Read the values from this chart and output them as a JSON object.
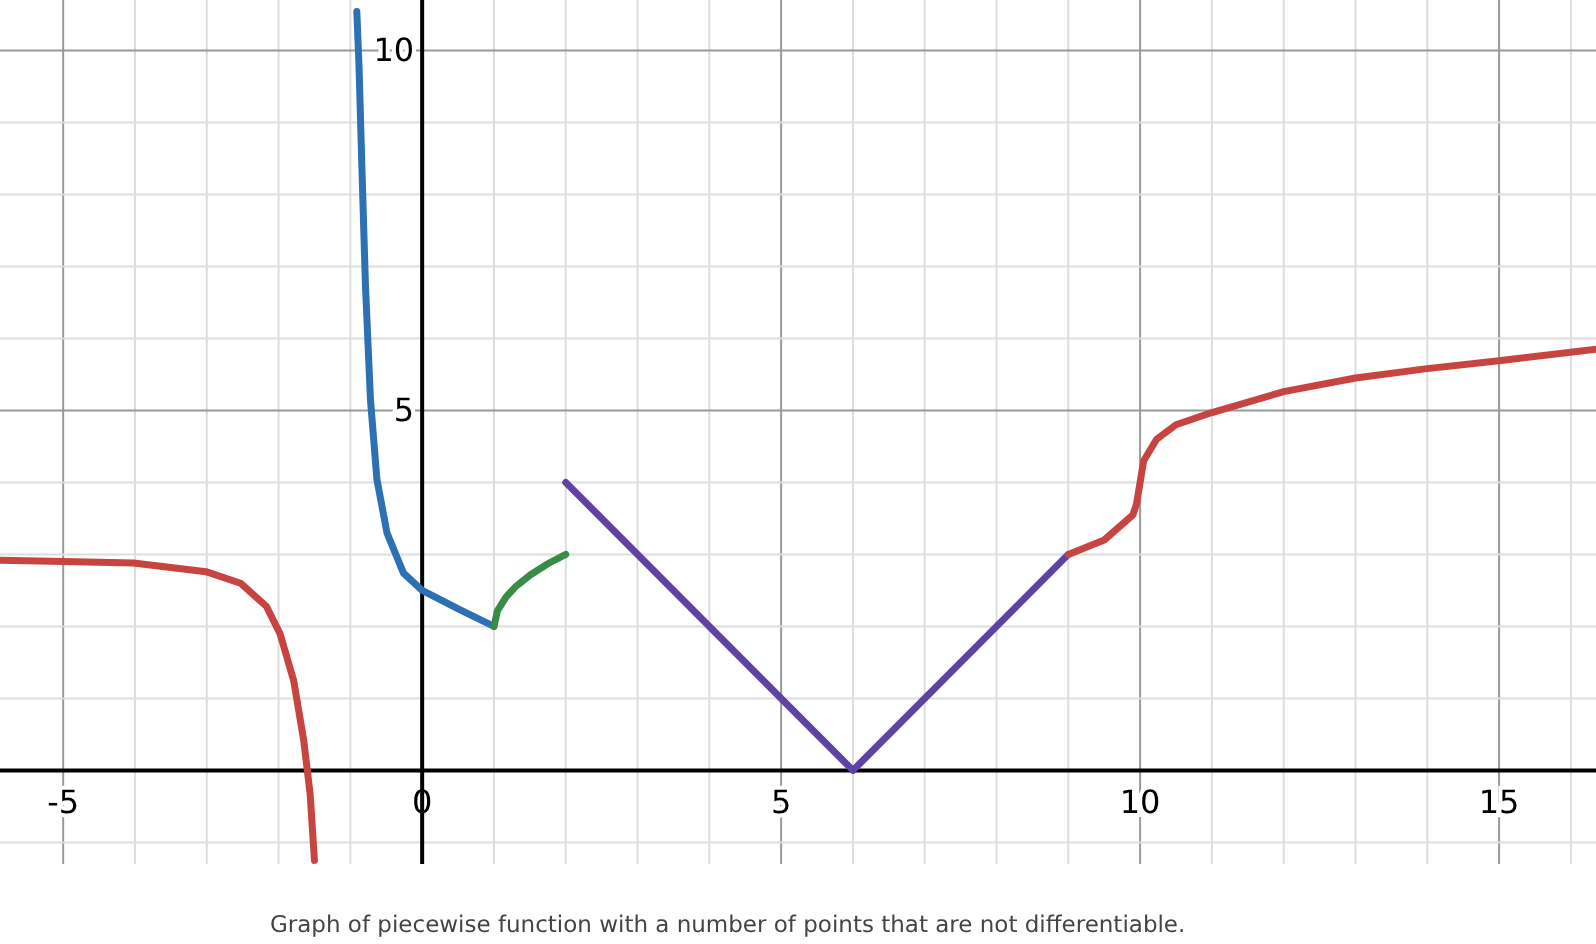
{
  "chart_data": {
    "type": "line",
    "grid": true,
    "xlim": [
      -5.88,
      16.35
    ],
    "ylim": [
      -1.3,
      10.7
    ],
    "xticks": [
      {
        "value": -5,
        "label": "-5"
      },
      {
        "value": -4,
        "label": null
      },
      {
        "value": -3,
        "label": null
      },
      {
        "value": -2,
        "label": null
      },
      {
        "value": -1,
        "label": null
      },
      {
        "value": 0,
        "label": "0"
      },
      {
        "value": 1,
        "label": null
      },
      {
        "value": 2,
        "label": null
      },
      {
        "value": 3,
        "label": null
      },
      {
        "value": 4,
        "label": null
      },
      {
        "value": 5,
        "label": "5"
      },
      {
        "value": 6,
        "label": null
      },
      {
        "value": 7,
        "label": null
      },
      {
        "value": 8,
        "label": null
      },
      {
        "value": 9,
        "label": null
      },
      {
        "value": 10,
        "label": "10"
      },
      {
        "value": 11,
        "label": null
      },
      {
        "value": 12,
        "label": null
      },
      {
        "value": 13,
        "label": null
      },
      {
        "value": 14,
        "label": null
      },
      {
        "value": 15,
        "label": "15"
      },
      {
        "value": 16,
        "label": null
      }
    ],
    "yticks": [
      {
        "value": -1,
        "label": null
      },
      {
        "value": 0,
        "label": null
      },
      {
        "value": 1,
        "label": null
      },
      {
        "value": 2,
        "label": null
      },
      {
        "value": 3,
        "label": null
      },
      {
        "value": 4,
        "label": null
      },
      {
        "value": 5,
        "label": "5"
      },
      {
        "value": 6,
        "label": null
      },
      {
        "value": 7,
        "label": null
      },
      {
        "value": 8,
        "label": null
      },
      {
        "value": 9,
        "label": null
      },
      {
        "value": 10,
        "label": "10"
      }
    ],
    "series": [
      {
        "color": "#c74440",
        "x": [
          -5.88,
          -4.99,
          -4.02,
          -3.01,
          -2.53,
          -2.17,
          -1.98,
          -1.79,
          -1.65,
          -1.56,
          -1.5
        ],
        "values": [
          2.92,
          2.9,
          2.88,
          2.76,
          2.6,
          2.28,
          1.9,
          1.25,
          0.42,
          -0.33,
          -1.25
        ]
      },
      {
        "color": "#2d70b3",
        "x": [
          -0.91,
          -0.88,
          -0.84,
          -0.79,
          -0.72,
          -0.63,
          -0.49,
          -0.26,
          0,
          0.53,
          1
        ],
        "values": [
          10.54,
          9.8,
          8.4,
          6.74,
          5.15,
          4.04,
          3.3,
          2.74,
          2.5,
          2.23,
          2
        ]
      },
      {
        "color": "#388c46",
        "x": [
          1,
          1.05,
          1.17,
          1.3,
          1.5,
          1.75,
          2
        ],
        "values": [
          2,
          2.22,
          2.41,
          2.55,
          2.71,
          2.87,
          3
        ]
      },
      {
        "color": "#6042a6",
        "x": [
          2,
          6,
          9
        ],
        "values": [
          4,
          0,
          3
        ]
      },
      {
        "color": "#c74440",
        "x": [
          9,
          9.5,
          9.9,
          9.95,
          10,
          10.05,
          10.23,
          10.5,
          11,
          12,
          13,
          14,
          15,
          16.35
        ],
        "values": [
          3,
          3.2,
          3.55,
          3.7,
          4,
          4.3,
          4.6,
          4.8,
          4.97,
          5.26,
          5.45,
          5.58,
          5.69,
          5.85
        ]
      }
    ],
    "annotations": [
      "Graph of piecewise function with a number of points that are not differentiable."
    ]
  }
}
